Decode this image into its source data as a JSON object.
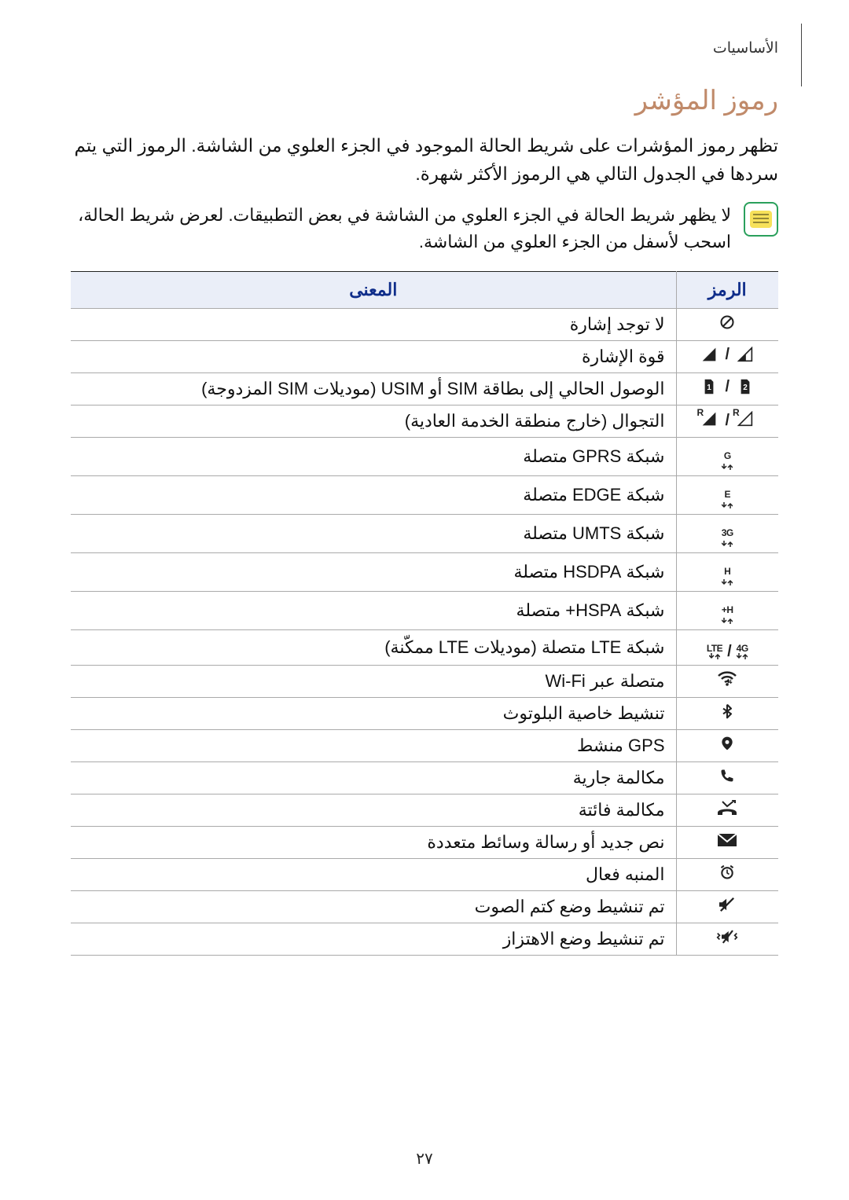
{
  "breadcrumb": "الأساسيات",
  "section_title": "رموز المؤشر",
  "intro": "تظهر رموز المؤشرات على شريط الحالة الموجود في الجزء العلوي من الشاشة. الرموز التي يتم سردها في الجدول التالي هي الرموز الأكثر شهرة.",
  "note": "لا يظهر شريط الحالة في الجزء العلوي من الشاشة في بعض التطبيقات. لعرض شريط الحالة، اسحب لأسفل من الجزء العلوي من الشاشة.",
  "table": {
    "header_icon": "الرمز",
    "header_meaning": "المعنى",
    "rows": [
      {
        "icon_key": "no_signal",
        "meaning": "لا توجد إشارة"
      },
      {
        "icon_key": "signal",
        "meaning": "قوة الإشارة"
      },
      {
        "icon_key": "sim",
        "meaning": "الوصول الحالي إلى بطاقة SIM أو USIM (موديلات SIM المزدوجة)"
      },
      {
        "icon_key": "roaming",
        "meaning": "التجوال (خارج منطقة الخدمة العادية)"
      },
      {
        "icon_key": "gprs",
        "meaning": "شبكة GPRS متصلة"
      },
      {
        "icon_key": "edge",
        "meaning": "شبكة EDGE متصلة"
      },
      {
        "icon_key": "umts",
        "meaning": "شبكة UMTS متصلة"
      },
      {
        "icon_key": "hsdpa",
        "meaning": "شبكة HSDPA متصلة"
      },
      {
        "icon_key": "hspa_plus",
        "meaning": "شبكة HSPA+ متصلة"
      },
      {
        "icon_key": "lte",
        "meaning": "شبكة LTE متصلة (موديلات LTE ممكّنة)"
      },
      {
        "icon_key": "wifi",
        "meaning": "متصلة عبر Wi-Fi"
      },
      {
        "icon_key": "bluetooth",
        "meaning": "تنشيط خاصية البلوتوث"
      },
      {
        "icon_key": "gps",
        "meaning": "GPS منشط"
      },
      {
        "icon_key": "call",
        "meaning": "مكالمة جارية"
      },
      {
        "icon_key": "missed",
        "meaning": "مكالمة فائتة"
      },
      {
        "icon_key": "message",
        "meaning": "نص جديد أو رسالة وسائط متعددة"
      },
      {
        "icon_key": "alarm",
        "meaning": "المنبه فعال"
      },
      {
        "icon_key": "mute",
        "meaning": "تم تنشيط وضع كتم الصوت"
      },
      {
        "icon_key": "vibrate",
        "meaning": "تم تنشيط وضع الاهتزاز"
      }
    ]
  },
  "page_number": "٢٧",
  "colors": {
    "title": "#c08a6a",
    "header_bg": "#eaeef8",
    "header_text": "#0f2d8a",
    "text": "#111111",
    "border": "#aaaaaa",
    "note_border": "#2aa05c",
    "note_fill": "#f7e15a"
  },
  "icons": {
    "labels": {
      "gprs": "G",
      "edge": "E",
      "umts": "3G",
      "hsdpa": "H",
      "hspa_plus": "H+",
      "lte_a": "LTE",
      "lte_b": "4G",
      "sim_a": "1",
      "sim_b": "2",
      "roaming_r": "R"
    }
  }
}
